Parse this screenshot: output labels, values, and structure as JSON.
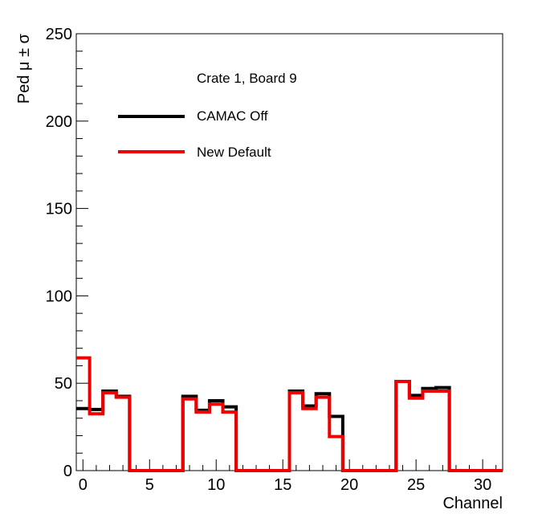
{
  "chart_data": {
    "type": "line",
    "step": true,
    "xlabel": "Channel",
    "ylabel": "Ped μ ± σ",
    "xlim": [
      -0.5,
      31.5
    ],
    "ylim": [
      0,
      250
    ],
    "xticks": [
      0,
      5,
      10,
      15,
      20,
      25,
      30
    ],
    "yticks": [
      0,
      50,
      100,
      150,
      200,
      250
    ],
    "annotation": "Crate 1, Board 9",
    "legend_position": "top-left",
    "grid": false,
    "x": [
      0,
      1,
      2,
      3,
      4,
      5,
      6,
      7,
      8,
      9,
      10,
      11,
      12,
      13,
      14,
      15,
      16,
      17,
      18,
      19,
      20,
      21,
      22,
      23,
      24,
      25,
      26,
      27,
      28,
      29,
      30,
      31
    ],
    "series": [
      {
        "name": "CAMAC Off",
        "color": "#000000",
        "values": [
          35.5,
          35,
          45.5,
          42.5,
          0,
          0,
          0,
          0,
          42.5,
          34.5,
          40,
          36.5,
          0,
          0,
          0,
          0,
          45.5,
          37,
          44,
          31,
          0,
          0,
          0,
          0,
          51,
          43,
          47,
          47.5,
          0,
          0,
          0,
          0
        ]
      },
      {
        "name": "New Default",
        "color": "#ee0000",
        "values": [
          64.5,
          32.5,
          44.5,
          42,
          0,
          0,
          0,
          0,
          41,
          33.5,
          38,
          33.5,
          0,
          0,
          0,
          0,
          44.5,
          35.5,
          42,
          19.5,
          0,
          0,
          0,
          0,
          51,
          41.5,
          45.5,
          45.5,
          0,
          0,
          0,
          0
        ]
      }
    ]
  }
}
